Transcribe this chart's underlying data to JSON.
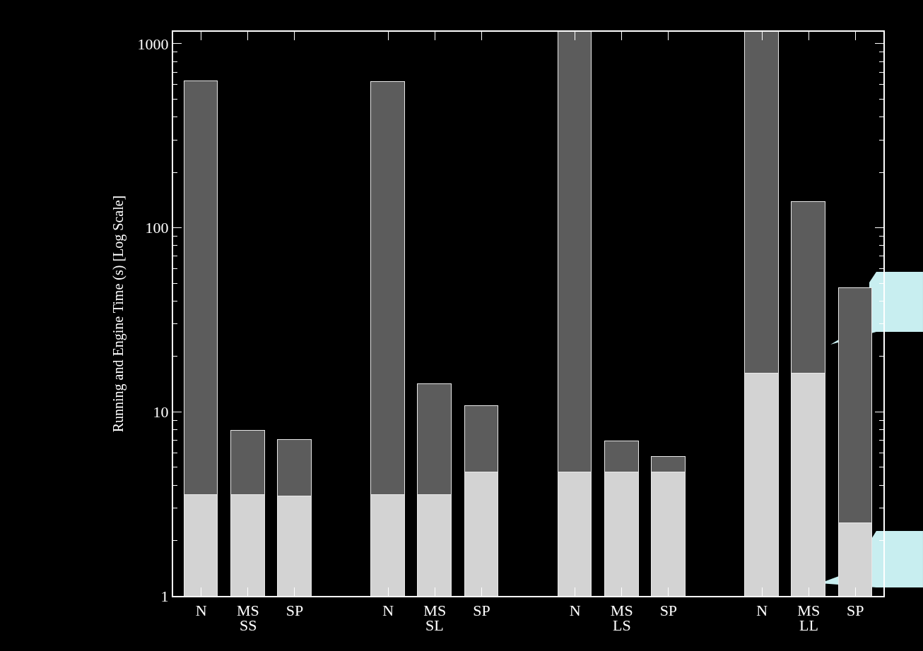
{
  "chart_data": {
    "type": "bar",
    "stacked": true,
    "log": true,
    "ylabel": "Running and Engine Time (s) [Log Scale]",
    "categories": [
      "N",
      "MS",
      "SP",
      "N",
      "MS",
      "SP",
      "N",
      "MS",
      "SP",
      "N",
      "MS",
      "SP"
    ],
    "annotations": [
      "SS",
      "SL",
      "LS",
      "LL"
    ],
    "series": [
      {
        "color": "#d3d3d3",
        "values": [
          3.54,
          3.54,
          3.48,
          3.54,
          3.54,
          4.7,
          4.7,
          4.7,
          4.7,
          16.2,
          16.2,
          2.49
        ]
      },
      {
        "color": "#5c5c5c",
        "values": [
          623,
          4.36,
          3.59,
          616,
          10.56,
          6.1,
          1155,
          2.24,
          1.01,
          1144,
          121.8,
          44.41
        ]
      }
    ],
    "ylim": [
      1,
      1160
    ],
    "yticks": [
      1,
      10,
      100,
      1000
    ],
    "grid": false
  }
}
